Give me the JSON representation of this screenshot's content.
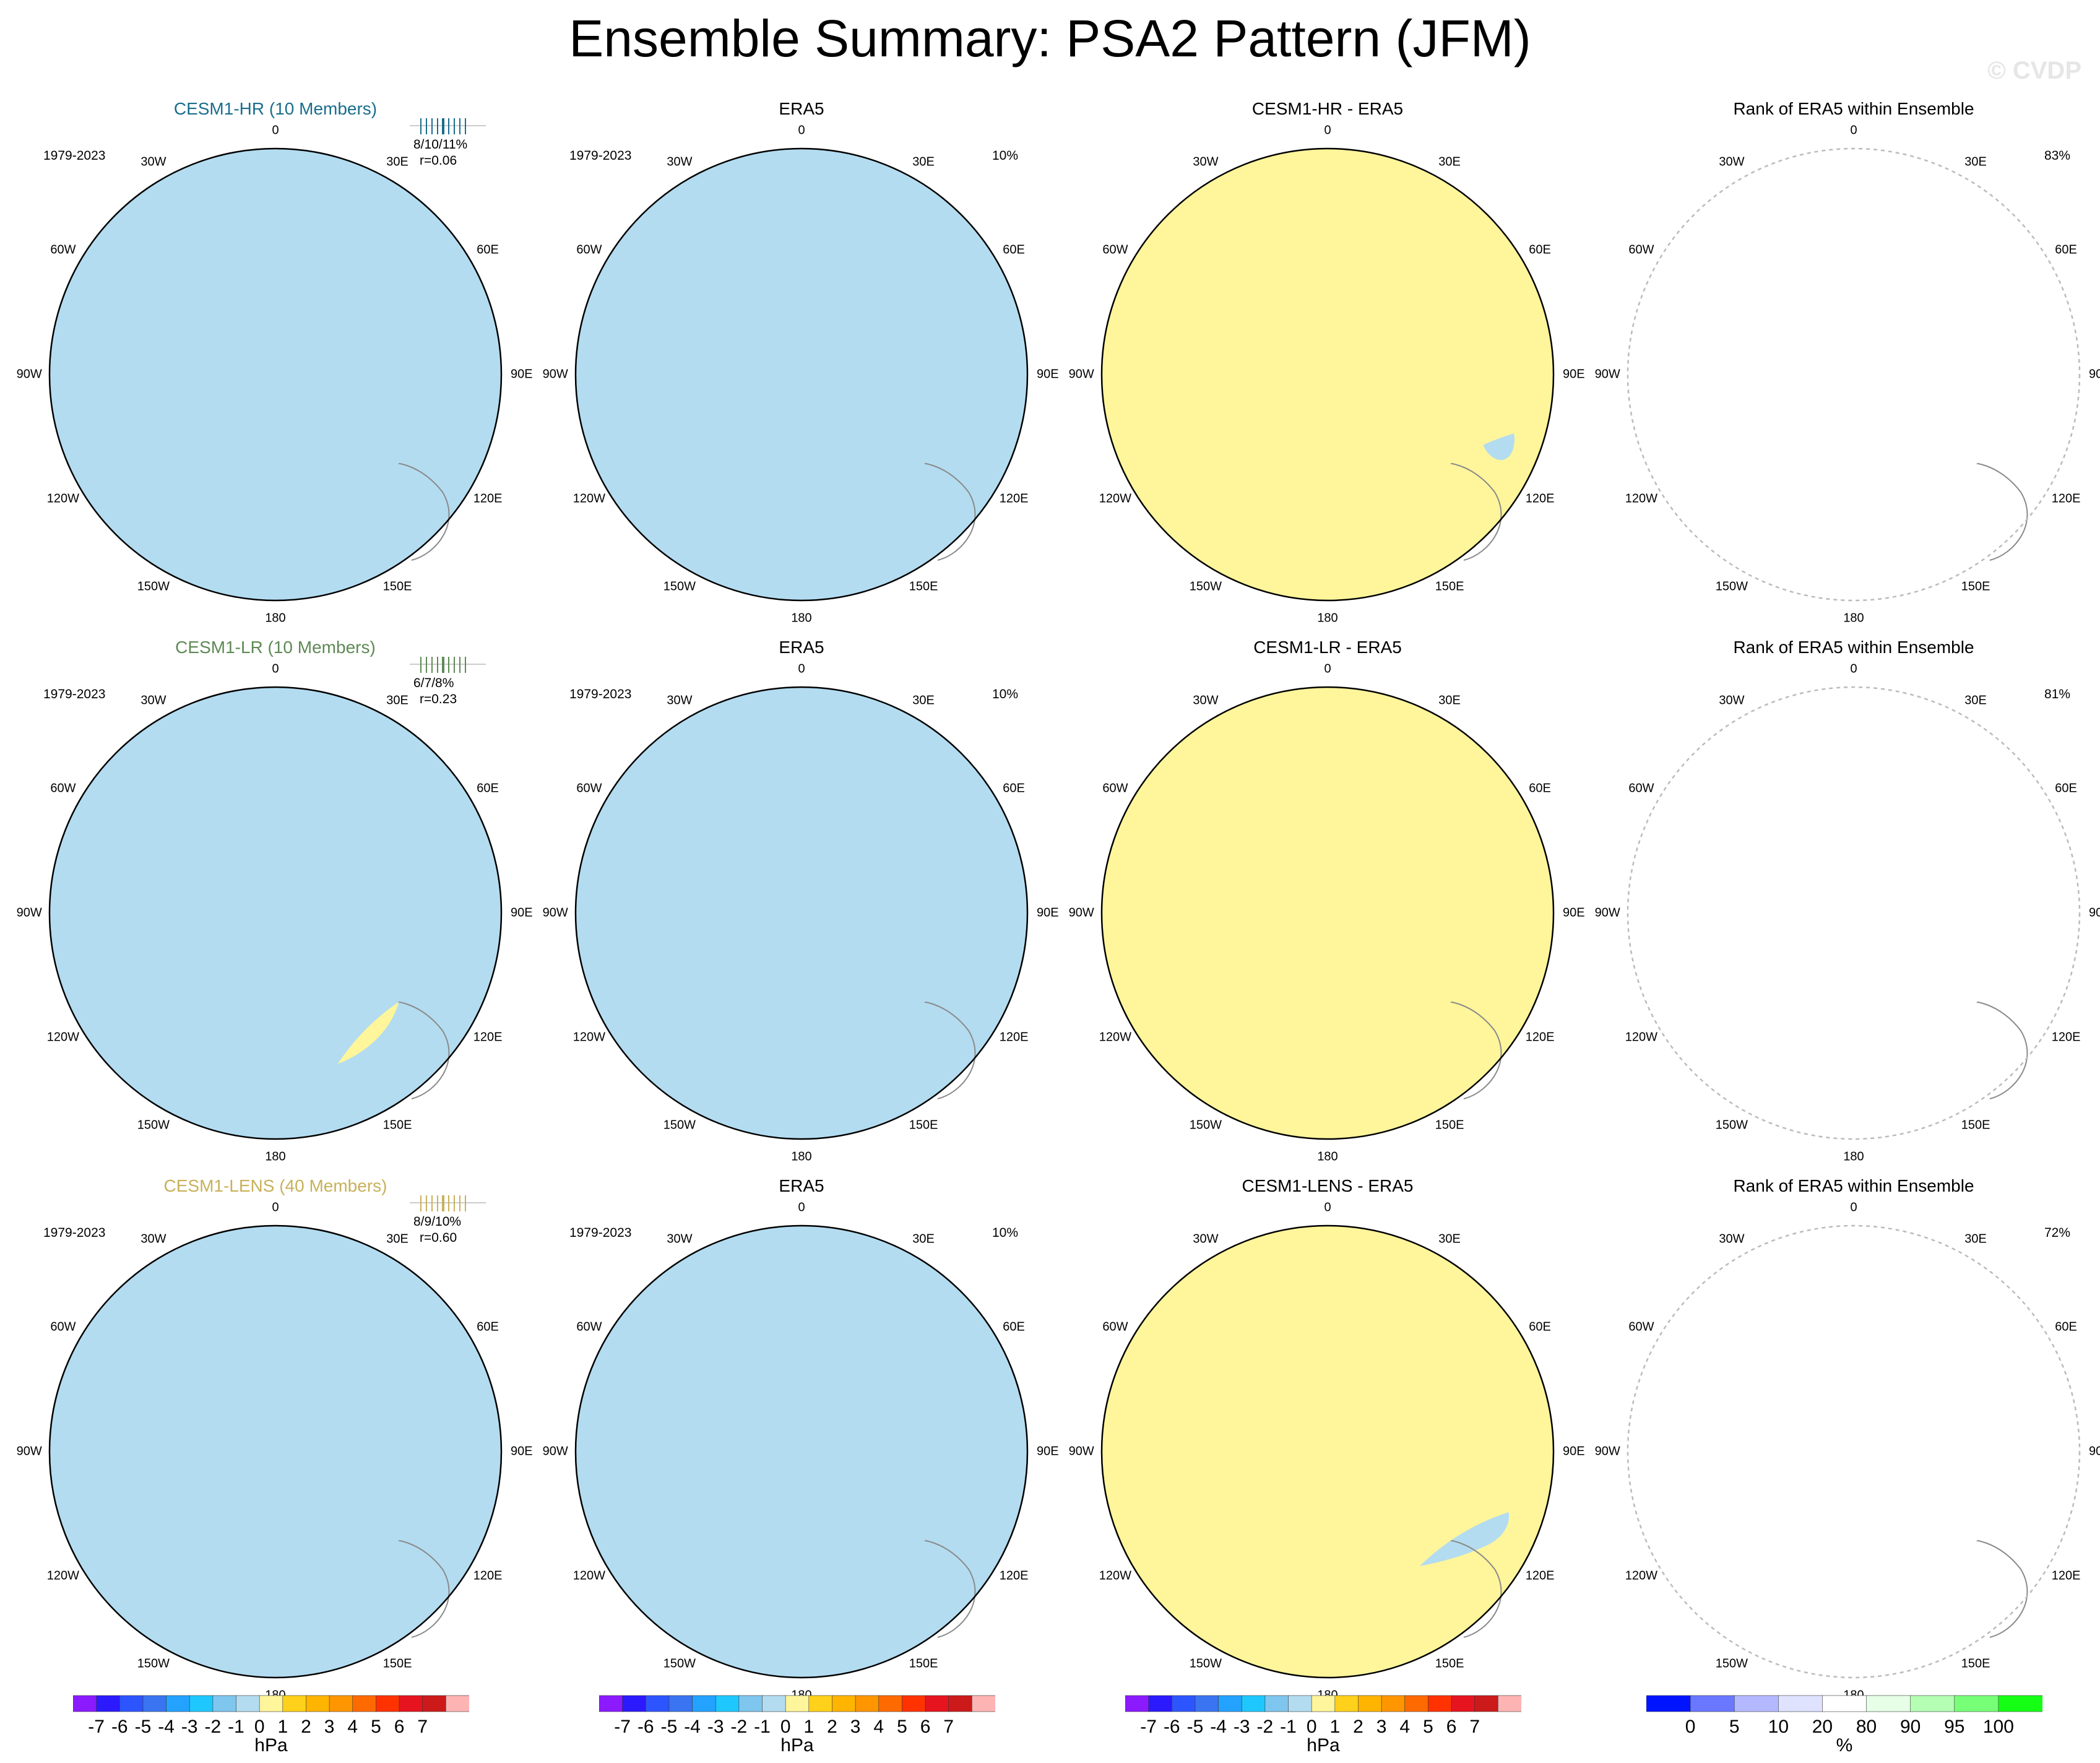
{
  "title": "Ensemble Summary: PSA2 Pattern (JFM)",
  "watermark": "© CVDP",
  "colors": {
    "ocean": "#b3dcf0",
    "land_outline": "#8a8a8a",
    "contours": {
      "-3": "#0093ff",
      "-2": "#32b7ff",
      "-1": "#7fc6ef",
      "1": "#ffd11a",
      "2": "#ffb400",
      "3": "#ff9600"
    },
    "row_titles": [
      "#1a6e8c",
      "#5e8a55",
      "#c8b15a"
    ]
  },
  "chart_data": {
    "type": "polar-contour",
    "meridian_labels": {
      "top": "0",
      "ur1": "30E",
      "ur2": "60E",
      "right": "90E",
      "lr1": "120E",
      "lr2": "150E",
      "bottom": "180",
      "ll2": "150W",
      "ll1": "120W",
      "left": "90W",
      "ul2": "60W",
      "ul1": "30W"
    },
    "rows": [
      {
        "model_title": "CESM1-HR (10 Members)",
        "model_period": "1979-2023",
        "model_stats": "8/10/11%",
        "model_r": "r=0.06",
        "obs_title": "ERA5",
        "obs_period": "1979-2023",
        "obs_pct": "10%",
        "diff_title": "CESM1-HR - ERA5",
        "rank_title": "Rank of ERA5 within Ensemble",
        "rank_pct": "83%"
      },
      {
        "model_title": "CESM1-LR (10 Members)",
        "model_period": "1979-2023",
        "model_stats": "6/7/8%",
        "model_r": "r=0.23",
        "obs_title": "ERA5",
        "obs_period": "1979-2023",
        "obs_pct": "10%",
        "diff_title": "CESM1-LR - ERA5",
        "rank_title": "Rank of ERA5 within Ensemble",
        "rank_pct": "81%"
      },
      {
        "model_title": "CESM1-LENS (40 Members)",
        "model_period": "1979-2023",
        "model_stats": "8/9/10%",
        "model_r": "r=0.60",
        "obs_title": "ERA5",
        "obs_period": "1979-2023",
        "obs_pct": "10%",
        "diff_title": "CESM1-LENS - ERA5",
        "rank_title": "Rank of ERA5 within Ensemble",
        "rank_pct": "72%"
      }
    ],
    "colorbars": [
      {
        "unit": "hPa",
        "ticks": [
          "-7",
          "-6",
          "-5",
          "-4",
          "-3",
          "-2",
          "-1",
          "0",
          "1",
          "2",
          "3",
          "4",
          "5",
          "6",
          "7"
        ],
        "colors": [
          "#8c1aff",
          "#2c1aff",
          "#2d55ff",
          "#3a74f0",
          "#23a2ff",
          "#1ec8ff",
          "#7fc6ef",
          "#b3dcf0",
          "#fff59b",
          "#ffd11a",
          "#ffb400",
          "#ff9600",
          "#ff6a00",
          "#ff3200",
          "#e6141e",
          "#cc1a1a",
          "#ffb4b4"
        ]
      },
      {
        "unit": "hPa",
        "ticks": [
          "-7",
          "-6",
          "-5",
          "-4",
          "-3",
          "-2",
          "-1",
          "0",
          "1",
          "2",
          "3",
          "4",
          "5",
          "6",
          "7"
        ],
        "colors": [
          "#8c1aff",
          "#2c1aff",
          "#2d55ff",
          "#3a74f0",
          "#23a2ff",
          "#1ec8ff",
          "#7fc6ef",
          "#b3dcf0",
          "#fff59b",
          "#ffd11a",
          "#ffb400",
          "#ff9600",
          "#ff6a00",
          "#ff3200",
          "#e6141e",
          "#cc1a1a",
          "#ffb4b4"
        ]
      },
      {
        "unit": "hPa",
        "ticks": [
          "-7",
          "-6",
          "-5",
          "-4",
          "-3",
          "-2",
          "-1",
          "0",
          "1",
          "2",
          "3",
          "4",
          "5",
          "6",
          "7"
        ],
        "colors": [
          "#8c1aff",
          "#2c1aff",
          "#2d55ff",
          "#3a74f0",
          "#23a2ff",
          "#1ec8ff",
          "#7fc6ef",
          "#b3dcf0",
          "#fff59b",
          "#ffd11a",
          "#ffb400",
          "#ff9600",
          "#ff6a00",
          "#ff3200",
          "#e6141e",
          "#cc1a1a",
          "#ffb4b4"
        ]
      },
      {
        "unit": "%",
        "ticks": [
          "0",
          "5",
          "10",
          "20",
          "80",
          "90",
          "95",
          "100"
        ],
        "colors": [
          "#0014ff",
          "#6a78ff",
          "#b4b9ff",
          "#e0e3ff",
          "#ffffff",
          "#e6ffe6",
          "#b4ffb4",
          "#78ff78",
          "#14ff14"
        ]
      }
    ]
  }
}
